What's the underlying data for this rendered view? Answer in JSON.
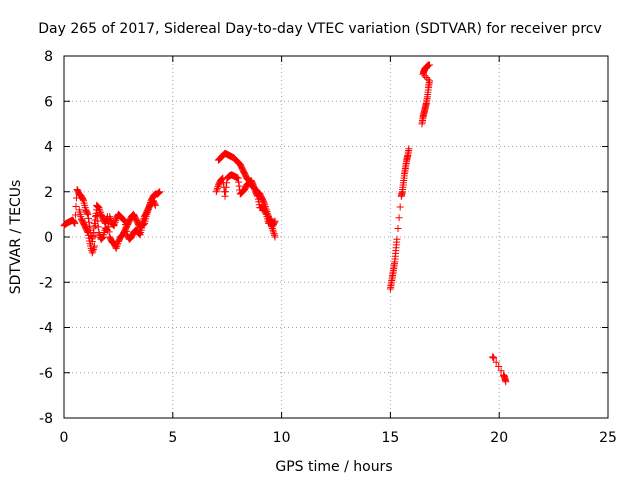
{
  "chart_data": {
    "type": "scatter",
    "title": "Day 265 of 2017, Sidereal Day-to-day VTEC variation (SDTVAR) for receiver prcv",
    "xlabel": "GPS time / hours",
    "ylabel": "SDTVAR / TECUs",
    "xlim": [
      0,
      25
    ],
    "ylim": [
      -8,
      8
    ],
    "xticks": [
      0,
      5,
      10,
      15,
      20,
      25
    ],
    "xtick_labels": [
      "0",
      "5",
      "10",
      "15",
      "20",
      "25"
    ],
    "yticks": [
      -8,
      -6,
      -4,
      -2,
      0,
      2,
      4,
      6,
      8
    ],
    "ytick_labels": [
      "-8",
      "-6",
      "-4",
      "-2",
      "0",
      "2",
      "4",
      "6",
      "8"
    ],
    "grid": true,
    "marker": "+",
    "color": "#ff0000",
    "series": [
      {
        "name": "SDTVAR",
        "segments": [
          {
            "x": [
              0.0,
              0.1,
              0.2,
              0.3,
              0.4,
              0.5,
              0.6,
              0.7,
              0.8,
              0.9,
              1.0,
              1.1,
              1.2,
              1.3,
              1.4,
              1.5,
              1.6,
              1.7,
              1.8,
              1.9,
              2.0,
              2.1,
              2.2,
              2.3,
              2.4,
              2.5,
              2.6,
              2.7,
              2.8,
              2.9,
              3.0,
              3.1,
              3.2,
              3.3,
              3.4,
              3.5,
              3.6,
              3.7,
              3.8,
              3.9,
              4.0,
              4.1,
              4.2,
              4.3,
              4.4
            ],
            "y": [
              0.5,
              0.6,
              0.65,
              0.7,
              0.75,
              0.6,
              2.1,
              1.9,
              1.8,
              1.6,
              1.2,
              1.0,
              0.3,
              -0.2,
              0.6,
              1.2,
              0.2,
              -0.1,
              0.0,
              0.4,
              0.3,
              0.9,
              0.6,
              0.5,
              0.8,
              1.0,
              0.9,
              0.8,
              0.7,
              0.1,
              -0.1,
              0.0,
              0.2,
              0.3,
              0.2,
              0.1,
              0.5,
              0.6,
              1.0,
              1.3,
              1.6,
              1.8,
              1.9,
              1.9,
              2.0
            ]
          },
          {
            "x": [
              0.7,
              0.8,
              0.9,
              1.0,
              1.1,
              1.2,
              1.3,
              1.4,
              1.5,
              1.6,
              1.7,
              1.8,
              1.9,
              2.0,
              2.1,
              2.2,
              2.3,
              2.4,
              2.5,
              2.6,
              2.7,
              2.8,
              2.9,
              3.0,
              3.1,
              3.2,
              3.3,
              3.4,
              3.5,
              3.6,
              3.7,
              3.8,
              3.9,
              4.0,
              4.1,
              4.2
            ],
            "y": [
              1.2,
              0.8,
              0.6,
              0.4,
              0.2,
              -0.3,
              -0.7,
              -0.4,
              1.4,
              1.3,
              1.0,
              0.8,
              0.6,
              0.9,
              0.0,
              -0.2,
              -0.3,
              -0.5,
              -0.2,
              0.0,
              0.1,
              0.3,
              0.5,
              0.7,
              0.9,
              1.0,
              0.8,
              0.6,
              0.4,
              0.6,
              0.9,
              1.1,
              1.3,
              1.5,
              1.6,
              1.4
            ]
          },
          {
            "x": [
              7.1,
              7.2,
              7.3,
              7.4,
              7.5,
              7.6,
              7.7,
              7.8,
              7.9,
              8.0,
              8.1,
              8.2,
              8.3,
              8.4,
              8.5,
              8.6,
              8.7,
              8.8,
              8.9,
              9.0,
              9.1,
              9.2,
              9.3,
              9.4,
              9.5,
              9.6,
              9.7
            ],
            "y": [
              3.4,
              3.5,
              3.6,
              3.7,
              3.65,
              3.6,
              3.55,
              3.5,
              3.4,
              3.3,
              3.2,
              3.0,
              2.8,
              2.6,
              2.5,
              2.3,
              2.2,
              2.1,
              2.0,
              1.9,
              1.7,
              1.5,
              1.2,
              0.9,
              0.6,
              0.3,
              0.0
            ]
          },
          {
            "x": [
              7.0,
              7.1,
              7.2,
              7.3,
              7.4,
              7.5,
              7.6,
              7.7,
              7.8,
              7.9,
              8.0,
              8.1,
              8.2,
              8.3,
              8.4,
              8.5,
              8.6,
              8.7,
              8.8,
              8.9,
              9.0,
              9.1,
              9.2,
              9.3,
              9.4,
              9.5,
              9.6,
              9.7
            ],
            "y": [
              2.0,
              2.3,
              2.5,
              2.6,
              1.8,
              2.6,
              2.7,
              2.75,
              2.7,
              2.65,
              2.6,
              1.9,
              2.0,
              2.1,
              2.3,
              2.4,
              2.5,
              2.3,
              2.0,
              1.8,
              1.3,
              1.3,
              1.2,
              1.0,
              0.6,
              0.8,
              0.5,
              0.7
            ]
          },
          {
            "x": [
              15.0,
              15.05,
              15.1,
              15.15,
              15.2,
              15.25,
              15.3,
              15.5,
              15.55,
              15.6,
              15.65,
              15.7,
              15.75,
              15.8,
              15.85
            ],
            "y": [
              -2.3,
              -2.0,
              -1.7,
              -1.4,
              -1.1,
              -0.6,
              -0.1,
              1.8,
              2.0,
              2.4,
              2.8,
              3.1,
              3.4,
              3.6,
              3.9
            ]
          },
          {
            "x": [
              16.45,
              16.5,
              16.55,
              16.6,
              16.65,
              16.7,
              16.75,
              16.8,
              16.5,
              16.55,
              16.6,
              16.65,
              16.7,
              16.75,
              16.8
            ],
            "y": [
              5.0,
              5.3,
              5.5,
              5.7,
              5.9,
              6.2,
              6.6,
              6.9,
              7.2,
              7.35,
              7.45,
              7.5,
              7.55,
              7.6,
              7.6
            ]
          },
          {
            "x": [
              19.7,
              19.75,
              20.2,
              20.25,
              20.3
            ],
            "y": [
              -5.3,
              -5.35,
              -6.1,
              -6.2,
              -6.4
            ]
          }
        ]
      }
    ]
  }
}
